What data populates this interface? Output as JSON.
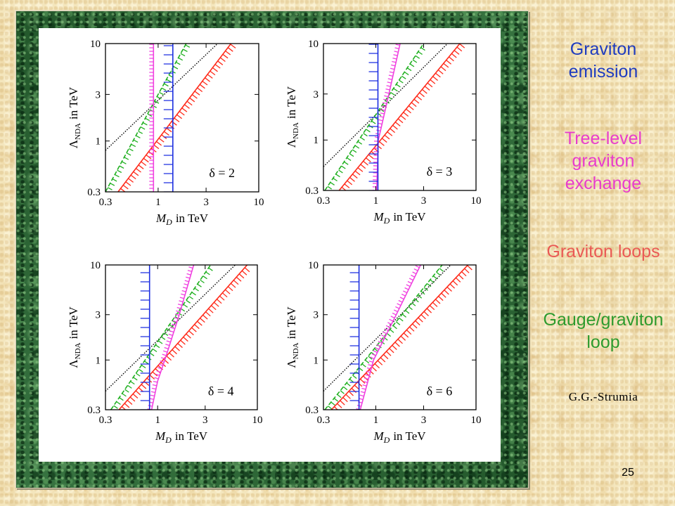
{
  "slide": {
    "legend": [
      {
        "lines": [
          "Graviton",
          "emission"
        ],
        "color": "#1f3cbf"
      },
      {
        "lines": [
          "Tree-level",
          "graviton",
          "exchange"
        ],
        "color": "#e83ccc"
      },
      {
        "lines": [
          "Graviton loops"
        ],
        "color": "#ea5a55"
      },
      {
        "lines": [
          "Gauge/graviton",
          "loop"
        ],
        "color": "#2e9b2e"
      }
    ],
    "citation": "G.G.-Strumia",
    "page_number": "25"
  },
  "chart_data": [
    {
      "type": "line",
      "xscale": "log",
      "yscale": "log",
      "xlim": [
        0.3,
        10
      ],
      "ylim": [
        0.3,
        10
      ],
      "xticks": [
        "0.3",
        "1",
        "3",
        "10"
      ],
      "yticks": [
        "0.3",
        "1",
        "3",
        "10"
      ],
      "xlabel": {
        "var": "M",
        "sub": "D",
        "unit": "in TeV"
      },
      "ylabel": {
        "var": "Λ",
        "sub": "NDA",
        "unit": "in TeV"
      },
      "annotation": "δ = 2",
      "grid": false,
      "series": [
        {
          "color": "#000000",
          "line": "dotted",
          "hatch": "none",
          "x": [
            0.3,
            3.9
          ],
          "y": [
            0.8,
            10
          ]
        },
        {
          "color": "#20b020",
          "line": "dashed",
          "hatch": "right",
          "x": [
            0.3,
            1.0,
            1.9
          ],
          "y": [
            0.3,
            3,
            10
          ]
        },
        {
          "color": "#ff2a1a",
          "line": "solid",
          "hatch": "right",
          "x": [
            0.4,
            5.3
          ],
          "y": [
            0.3,
            10
          ]
        },
        {
          "color": "#f040e0",
          "line": "solid",
          "hatch": "left",
          "x": [
            0.9,
            0.9
          ],
          "y": [
            0.3,
            10
          ]
        },
        {
          "color": "#1c2fe0",
          "line": "solid",
          "hatch": "left",
          "x": [
            1.4,
            1.4
          ],
          "y": [
            0.3,
            10
          ]
        }
      ]
    },
    {
      "type": "line",
      "xscale": "log",
      "yscale": "log",
      "xlim": [
        0.3,
        10
      ],
      "ylim": [
        0.3,
        10
      ],
      "xticks": [
        "0.3",
        "1",
        "3",
        "10"
      ],
      "yticks": [
        "0.3",
        "1",
        "3",
        "10"
      ],
      "xlabel": {
        "var": "M",
        "sub": "D",
        "unit": "in TeV"
      },
      "ylabel": {
        "var": "Λ",
        "sub": "NDA",
        "unit": "in TeV"
      },
      "annotation": "δ = 3",
      "grid": false,
      "series": [
        {
          "color": "#000000",
          "line": "dotted",
          "hatch": "none",
          "x": [
            0.3,
            5.2
          ],
          "y": [
            0.53,
            10
          ]
        },
        {
          "color": "#20b020",
          "line": "dashed",
          "hatch": "right",
          "x": [
            0.31,
            3.0
          ],
          "y": [
            0.3,
            10
          ]
        },
        {
          "color": "#ff2a1a",
          "line": "solid",
          "hatch": "right",
          "x": [
            0.43,
            6.9
          ],
          "y": [
            0.3,
            10
          ]
        },
        {
          "color": "#f040e0",
          "line": "solid",
          "hatch": "left",
          "x": [
            1.02,
            1.06,
            1.35,
            1.75
          ],
          "y": [
            0.3,
            1,
            3,
            10
          ]
        },
        {
          "color": "#1c2fe0",
          "line": "solid",
          "hatch": "left",
          "x": [
            1.05,
            1.05
          ],
          "y": [
            0.3,
            10
          ]
        }
      ]
    },
    {
      "type": "line",
      "xscale": "log",
      "yscale": "log",
      "xlim": [
        0.3,
        10
      ],
      "ylim": [
        0.3,
        10
      ],
      "xticks": [
        "0.3",
        "1",
        "3",
        "10"
      ],
      "yticks": [
        "0.3",
        "1",
        "3",
        "10"
      ],
      "xlabel": {
        "var": "M",
        "sub": "D",
        "unit": "in TeV"
      },
      "ylabel": {
        "var": "Λ",
        "sub": "NDA",
        "unit": "in TeV"
      },
      "annotation": "δ = 4",
      "grid": false,
      "series": [
        {
          "color": "#000000",
          "line": "dotted",
          "hatch": "none",
          "x": [
            0.3,
            6.0
          ],
          "y": [
            0.47,
            10
          ]
        },
        {
          "color": "#20b020",
          "line": "dashed",
          "hatch": "right",
          "x": [
            0.34,
            3.4
          ],
          "y": [
            0.3,
            10
          ]
        },
        {
          "color": "#ff2a1a",
          "line": "solid",
          "hatch": "right",
          "x": [
            0.41,
            7.9
          ],
          "y": [
            0.3,
            10
          ]
        },
        {
          "color": "#f040e0",
          "line": "solid",
          "hatch": "left",
          "x": [
            0.87,
            1.0,
            1.18,
            1.65,
            2.3
          ],
          "y": [
            0.3,
            0.6,
            1,
            3,
            10
          ]
        },
        {
          "color": "#1c2fe0",
          "line": "solid",
          "hatch": "left",
          "x": [
            0.83,
            0.83
          ],
          "y": [
            0.3,
            10
          ]
        }
      ]
    },
    {
      "type": "line",
      "xscale": "log",
      "yscale": "log",
      "xlim": [
        0.3,
        10
      ],
      "ylim": [
        0.3,
        10
      ],
      "xticks": [
        "0.3",
        "1",
        "3",
        "10"
      ],
      "yticks": [
        "0.3",
        "1",
        "3",
        "10"
      ],
      "xlabel": {
        "var": "M",
        "sub": "D",
        "unit": "in TeV"
      },
      "ylabel": {
        "var": "Λ",
        "sub": "NDA",
        "unit": "in TeV"
      },
      "annotation": "δ = 6",
      "grid": false,
      "series": [
        {
          "color": "#000000",
          "line": "dotted",
          "hatch": "none",
          "x": [
            0.3,
            5.6
          ],
          "y": [
            0.47,
            10
          ]
        },
        {
          "color": "#20b020",
          "line": "dashed",
          "hatch": "right",
          "x": [
            0.31,
            4.6
          ],
          "y": [
            0.3,
            10
          ]
        },
        {
          "color": "#ff2a1a",
          "line": "solid",
          "hatch": "right",
          "x": [
            0.36,
            8.3
          ],
          "y": [
            0.3,
            10
          ]
        },
        {
          "color": "#f040e0",
          "line": "solid",
          "hatch": "left",
          "x": [
            0.7,
            0.95,
            1.6,
            2.8
          ],
          "y": [
            0.3,
            1,
            3,
            10
          ]
        },
        {
          "color": "#1c2fe0",
          "line": "solid",
          "hatch": "left",
          "x": [
            0.68,
            0.68
          ],
          "y": [
            0.3,
            10
          ]
        }
      ]
    }
  ]
}
